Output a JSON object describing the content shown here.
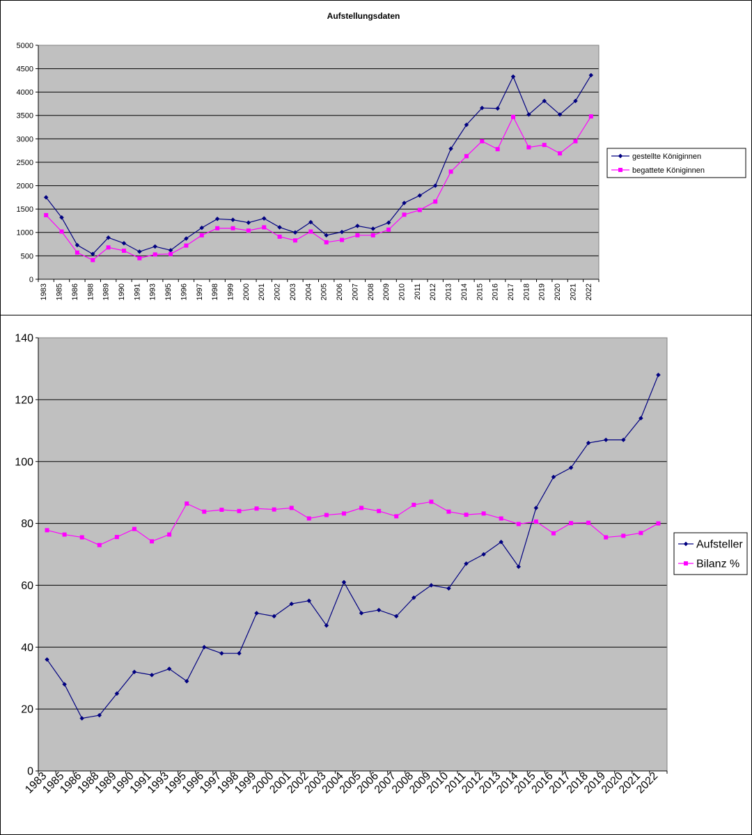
{
  "chart_data": [
    {
      "type": "line",
      "title": "Aufstellungsdaten",
      "categories": [
        "1983",
        "1985",
        "1986",
        "1988",
        "1989",
        "1990",
        "1991",
        "1993",
        "1995",
        "1996",
        "1997",
        "1998",
        "1999",
        "2000",
        "2001",
        "2002",
        "2003",
        "2004",
        "2005",
        "2006",
        "2007",
        "2008",
        "2009",
        "2010",
        "2011",
        "2012",
        "2013",
        "2014",
        "2015",
        "2016",
        "2017",
        "2018",
        "2019",
        "2020",
        "2021",
        "2022"
      ],
      "ylim": [
        0,
        5000
      ],
      "yticks": [
        0,
        500,
        1000,
        1500,
        2000,
        2500,
        3000,
        3500,
        4000,
        4500,
        5000
      ],
      "grid": true,
      "legend_position": "right",
      "series": [
        {
          "name": "gestellte Königinnen",
          "color": "#000080",
          "marker": "diamond",
          "values": [
            1750,
            1320,
            730,
            540,
            890,
            770,
            590,
            700,
            620,
            870,
            1100,
            1290,
            1270,
            1210,
            1300,
            1110,
            1000,
            1220,
            940,
            1010,
            1140,
            1080,
            1210,
            1630,
            1790,
            2000,
            2790,
            3300,
            3660,
            3650,
            4330,
            3520,
            3810,
            3520,
            3810,
            4360
          ]
        },
        {
          "name": "begattete Königinnen",
          "color": "#ff00ff",
          "marker": "square",
          "values": [
            1370,
            1020,
            570,
            410,
            680,
            610,
            450,
            530,
            540,
            720,
            940,
            1090,
            1090,
            1040,
            1110,
            910,
            830,
            1020,
            790,
            840,
            940,
            940,
            1060,
            1380,
            1480,
            1660,
            2300,
            2630,
            2950,
            2780,
            3470,
            2820,
            2870,
            2690,
            2950,
            3480
          ]
        }
      ]
    },
    {
      "type": "line",
      "title": "",
      "categories": [
        "1983",
        "1985",
        "1986",
        "1988",
        "1989",
        "1990",
        "1991",
        "1993",
        "1995",
        "1996",
        "1997",
        "1998",
        "1999",
        "2000",
        "2001",
        "2002",
        "2003",
        "2004",
        "2005",
        "2006",
        "2007",
        "2008",
        "2009",
        "2010",
        "2011",
        "2012",
        "2013",
        "2014",
        "2015",
        "2016",
        "2017",
        "2018",
        "2019",
        "2020",
        "2021",
        "2022"
      ],
      "ylim": [
        0,
        140
      ],
      "yticks": [
        0,
        20,
        40,
        60,
        80,
        100,
        120,
        140
      ],
      "grid": true,
      "legend_position": "right",
      "series": [
        {
          "name": "Aufsteller",
          "color": "#000080",
          "marker": "diamond",
          "values": [
            36,
            28,
            17,
            18,
            25,
            32,
            31,
            33,
            29,
            40,
            38,
            38,
            51,
            50,
            54,
            55,
            47,
            61,
            51,
            52,
            50,
            56,
            60,
            59,
            67,
            70,
            74,
            66,
            85,
            95,
            98,
            106,
            107,
            107,
            114,
            128
          ]
        },
        {
          "name": "Bilanz %",
          "color": "#ff00ff",
          "marker": "square",
          "values": [
            77.8,
            76.4,
            75.5,
            73.0,
            75.6,
            78.2,
            74.2,
            76.4,
            86.4,
            83.8,
            84.4,
            84.0,
            84.8,
            84.5,
            85.0,
            81.6,
            82.7,
            83.2,
            85.0,
            84.0,
            82.3,
            86.0,
            87.0,
            83.8,
            82.8,
            83.2,
            81.6,
            79.8,
            80.6,
            76.8,
            80.1,
            80.2,
            75.5,
            76.0,
            76.9,
            80.0
          ]
        }
      ]
    }
  ]
}
